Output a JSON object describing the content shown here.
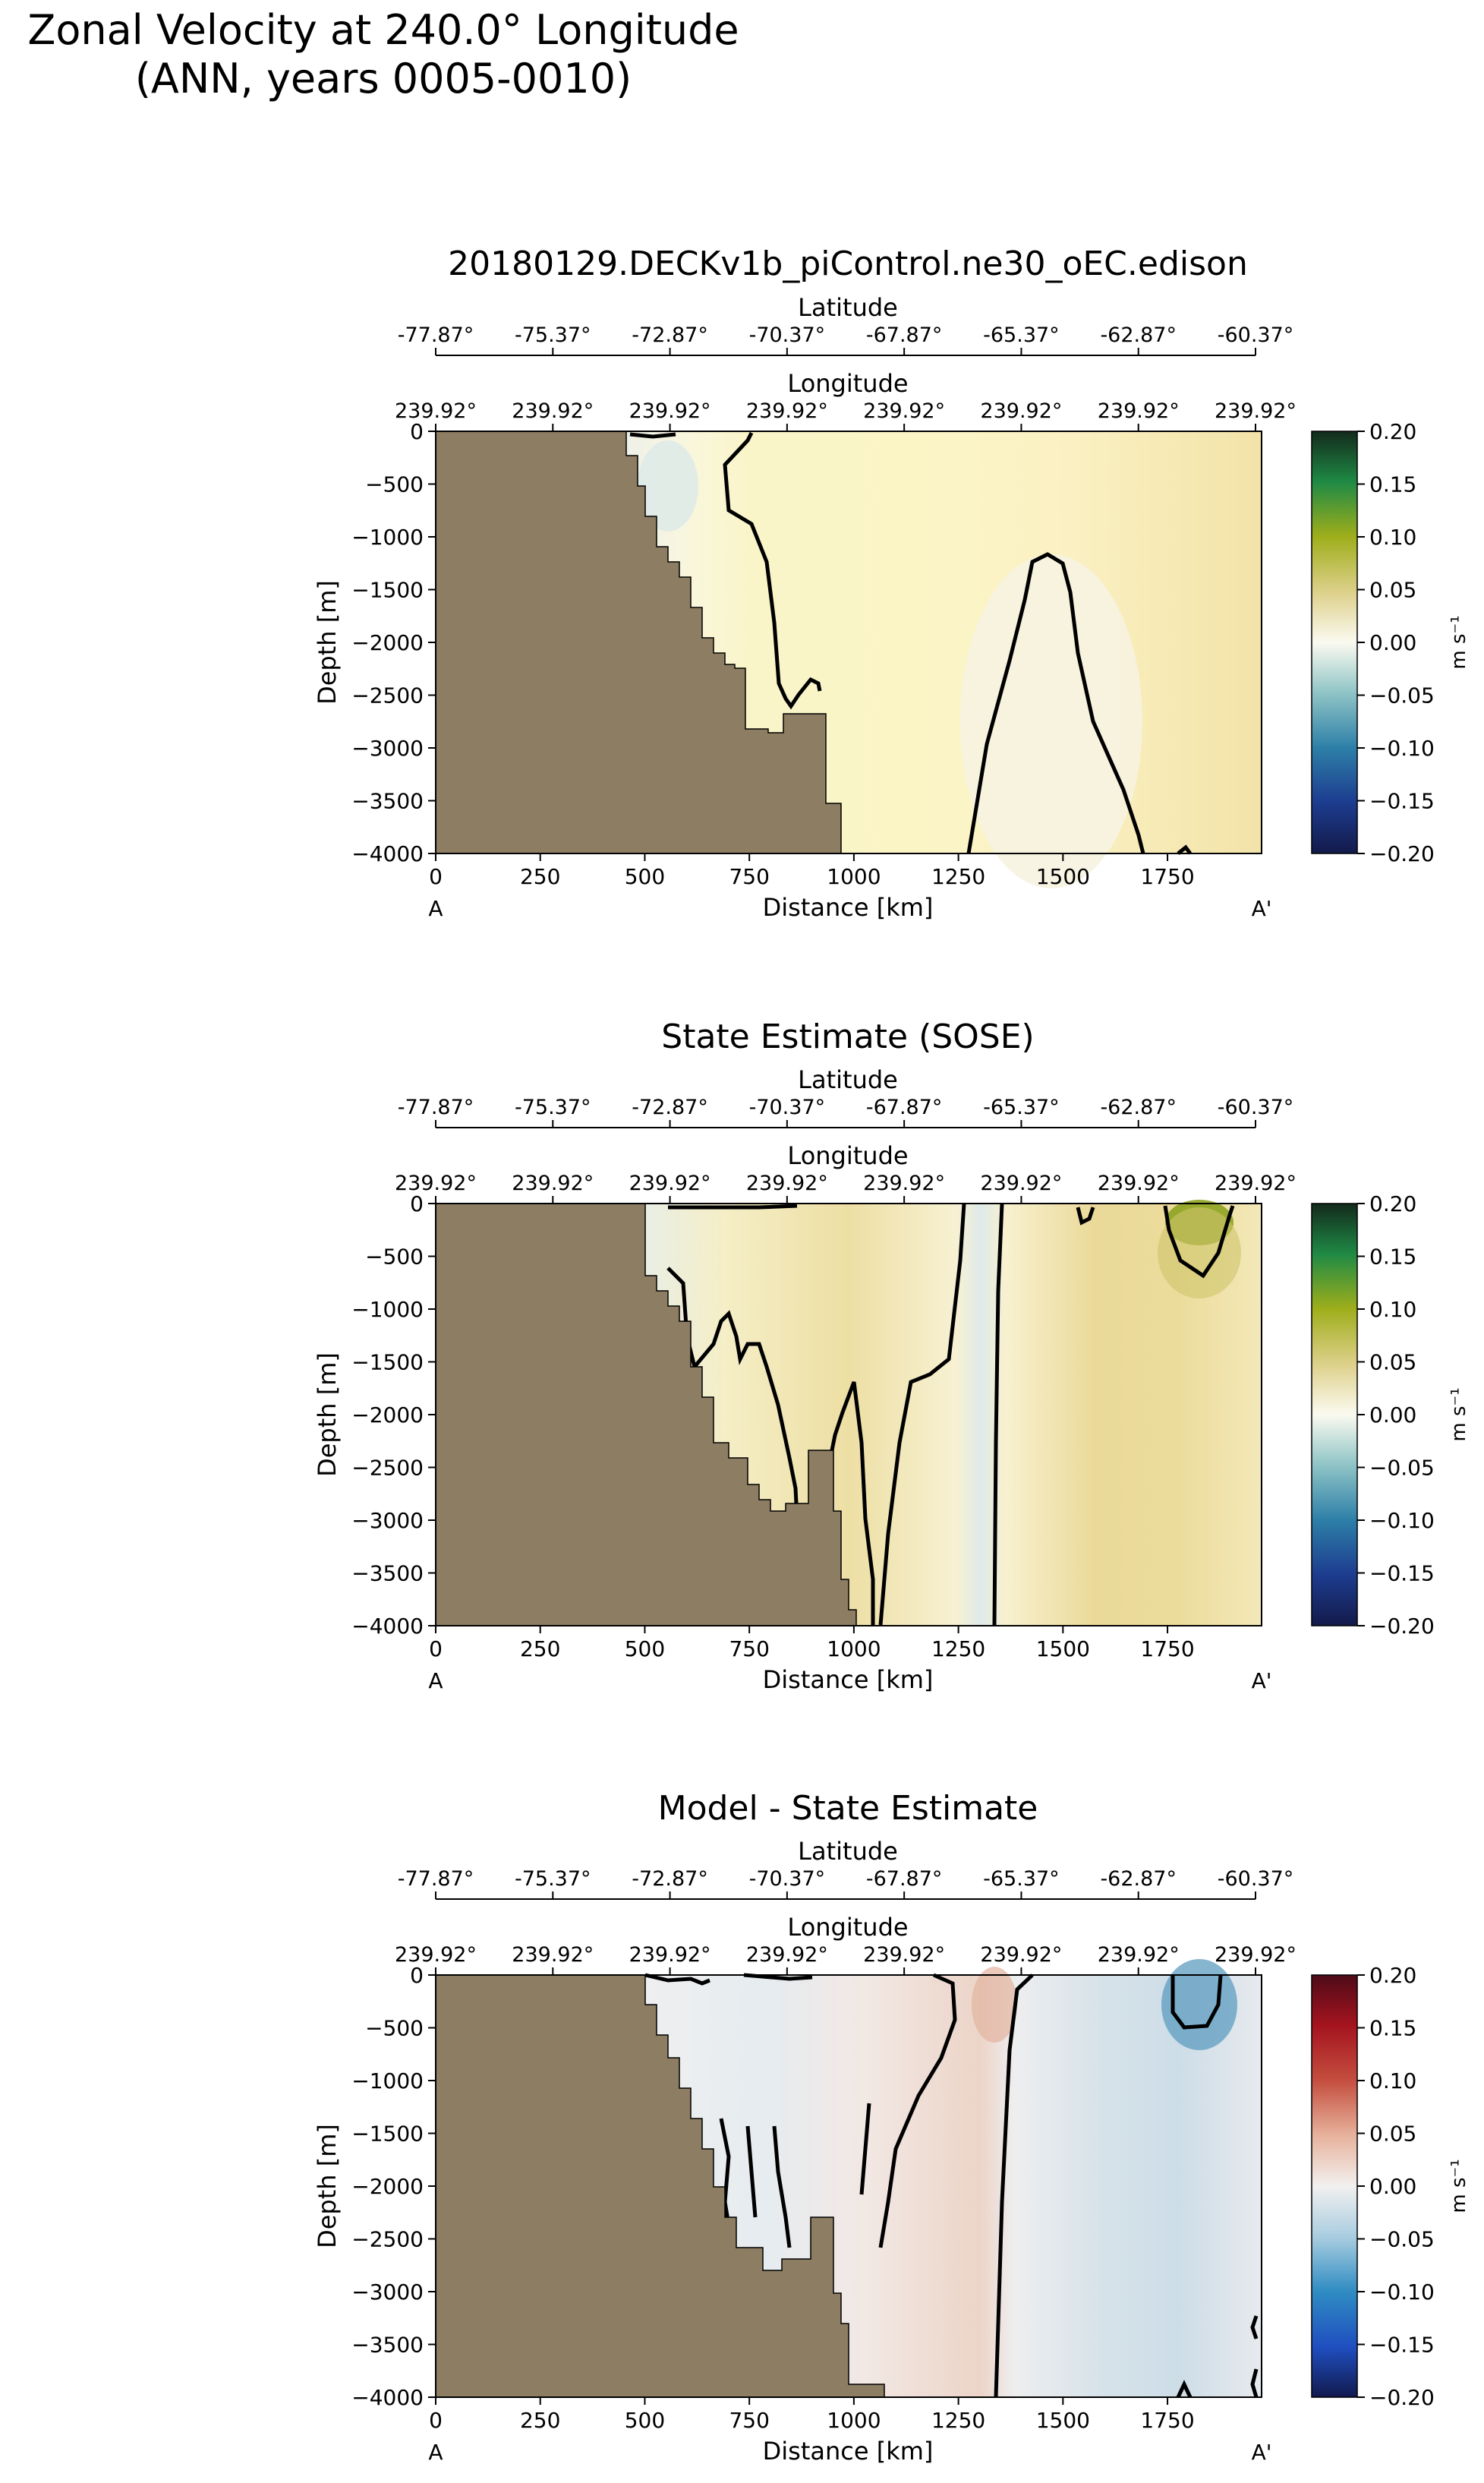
{
  "figure": {
    "title_line1": "Zonal Velocity at 240.0° Longitude",
    "title_line2": "(ANN, years 0005-0010)"
  },
  "common": {
    "latitude_label": "Latitude",
    "longitude_label": "Longitude",
    "latitude_ticks": [
      "-77.87°",
      "-75.37°",
      "-72.87°",
      "-70.37°",
      "-67.87°",
      "-65.37°",
      "-62.87°",
      "-60.37°"
    ],
    "longitude_ticks": [
      "239.92°",
      "239.92°",
      "239.92°",
      "239.92°",
      "239.92°",
      "239.92°",
      "239.92°",
      "239.92°"
    ],
    "section_start": "A",
    "section_end": "A'",
    "colorbar_unit": "m s⁻¹",
    "land_color": "#8c7d63"
  },
  "chart_data": [
    {
      "type": "heatmap",
      "title": "20180129.DECKv1b_piControl.ne30_oEC.edison",
      "xlabel": "Distance [km]",
      "ylabel": "Depth [m]",
      "xlim": [
        0,
        1975
      ],
      "ylim": [
        -4000,
        0
      ],
      "xticks": [
        0,
        250,
        500,
        750,
        1000,
        1250,
        1500,
        1750
      ],
      "yticks": [
        0,
        -500,
        -1000,
        -1500,
        -2000,
        -2500,
        -3000,
        -3500,
        -4000
      ],
      "colorbar": {
        "cmap": "gist_earth-like (blue-white-yellow-green)",
        "min": -0.2,
        "max": 0.2,
        "ticks": [
          "0.20",
          "0.15",
          "0.10",
          "0.05",
          "0.00",
          "−0.05",
          "−0.10",
          "−0.15",
          "−0.20"
        ]
      },
      "field_description_levels": "mostly +0.01 to +0.04 m/s (pale yellow); ~0 m/s near 500-700 km and 1250-1680 km"
    },
    {
      "type": "heatmap",
      "title": "State Estimate (SOSE)",
      "xlabel": "Distance [km]",
      "ylabel": "Depth [m]",
      "xlim": [
        0,
        1975
      ],
      "ylim": [
        -4000,
        0
      ],
      "xticks": [
        0,
        250,
        500,
        750,
        1000,
        1250,
        1500,
        1750
      ],
      "yticks": [
        0,
        -500,
        -1000,
        -1500,
        -2000,
        -2500,
        -3000,
        -3500,
        -4000
      ],
      "colorbar": {
        "cmap": "gist_earth-like (blue-white-yellow-green)",
        "min": -0.2,
        "max": 0.2,
        "ticks": [
          "0.20",
          "0.15",
          "0.10",
          "0.05",
          "0.00",
          "−0.05",
          "−0.10",
          "−0.15",
          "−0.20"
        ]
      },
      "max_value_estimate": 0.09
    },
    {
      "type": "heatmap",
      "title": "Model - State Estimate",
      "xlabel": "Distance [km]",
      "ylabel": "Depth [m]",
      "xlim": [
        0,
        1975
      ],
      "ylim": [
        -4000,
        0
      ],
      "xticks": [
        0,
        250,
        500,
        750,
        1000,
        1250,
        1500,
        1750
      ],
      "yticks": [
        0,
        -500,
        -1000,
        -1500,
        -2000,
        -2500,
        -3000,
        -3500,
        -4000
      ],
      "colorbar": {
        "cmap": "RdBu_r",
        "min": -0.2,
        "max": 0.2,
        "ticks": [
          "0.20",
          "0.15",
          "0.10",
          "0.05",
          "0.00",
          "−0.05",
          "−0.10",
          "−0.15",
          "−0.20"
        ]
      },
      "min_value_estimate": -0.07
    }
  ]
}
